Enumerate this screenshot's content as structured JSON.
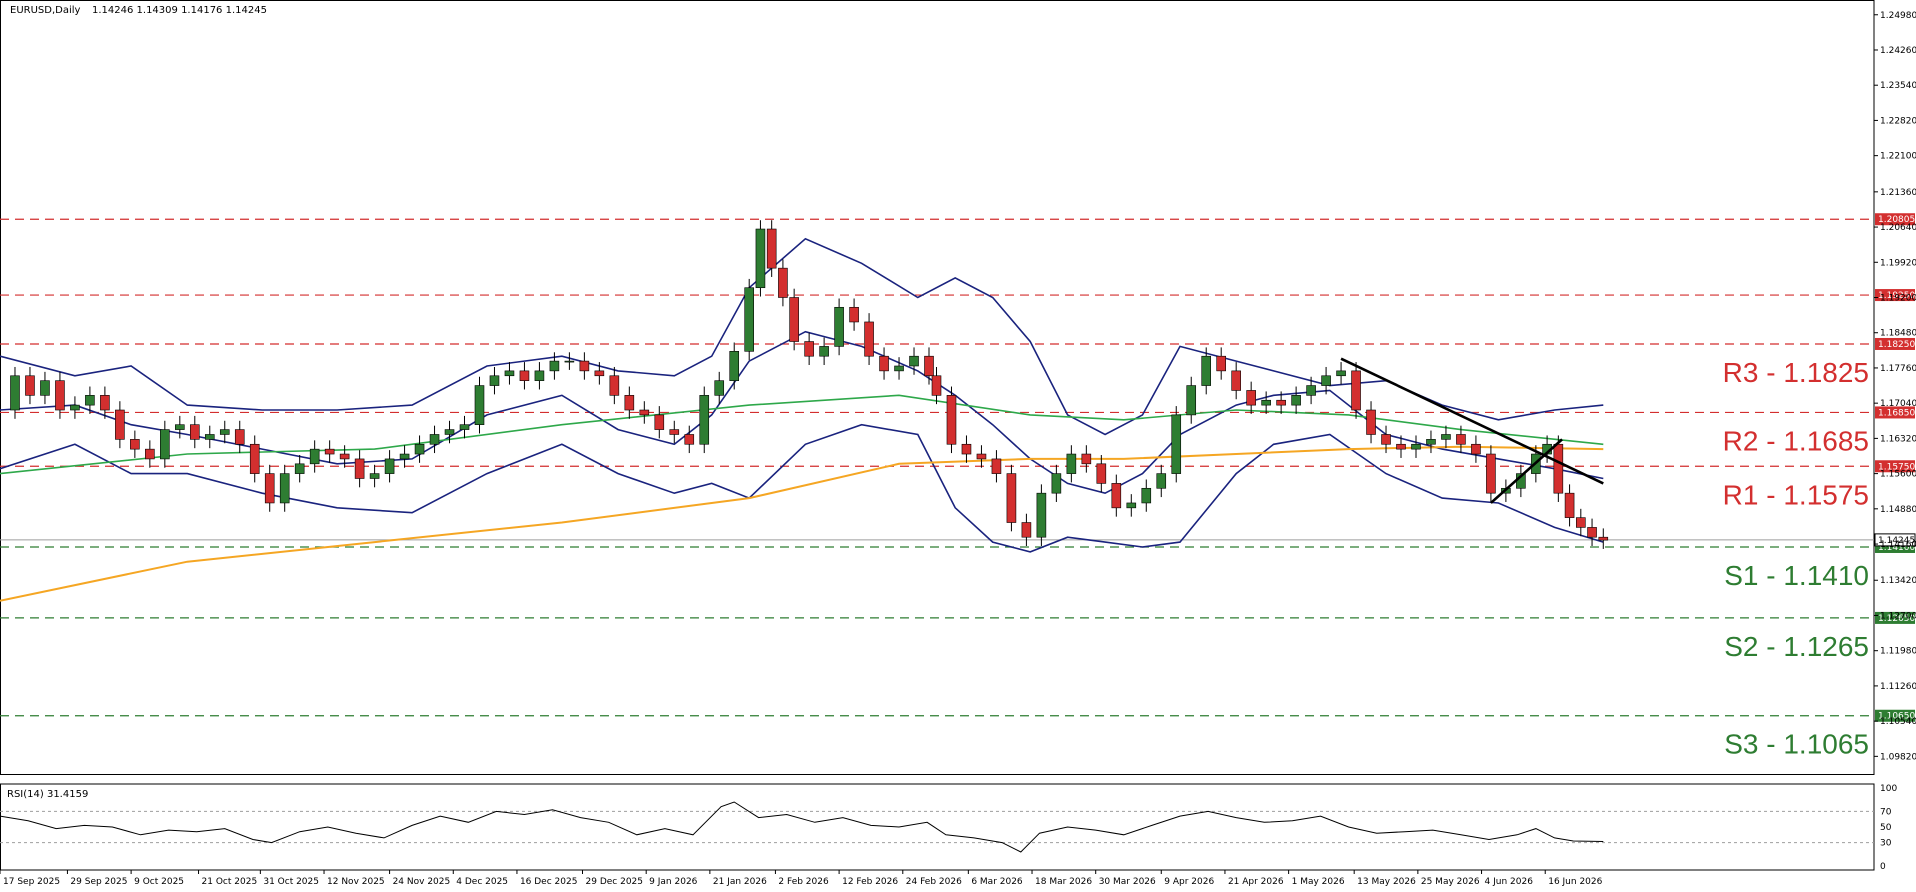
{
  "header": {
    "symbol_tf": "EURUSD,Daily",
    "ohlc": "1.14246 1.14309 1.14176 1.14245"
  },
  "rsi_header": "RSI(14) 31.4159",
  "colors": {
    "bull": "#2e7d32",
    "bear": "#d32f2f",
    "resistance": "#d32f2f",
    "support": "#2e7d32",
    "bollinger": "#1a237e",
    "ma_green": "#2ea84a",
    "ma_orange": "#f5a623",
    "trendline": "#000000",
    "rsi": "#000000"
  },
  "levels": [
    {
      "name": "r3",
      "price": 1.1825,
      "tag": "1.18250",
      "label": "R3 - 1.1825",
      "kind": "resistance"
    },
    {
      "name": "r2",
      "price": 1.1685,
      "tag": "1.16850",
      "label": "R2 - 1.1685",
      "kind": "resistance"
    },
    {
      "name": "r1",
      "price": 1.1575,
      "tag": "1.15750",
      "label": "R1 - 1.1575",
      "kind": "resistance"
    },
    {
      "name": "s1",
      "price": 1.141,
      "tag": "1.14100",
      "label": "S1 - 1.1410",
      "kind": "support"
    },
    {
      "name": "s2",
      "price": 1.1265,
      "tag": "1.12650",
      "label": "S2 - 1.1265",
      "kind": "support"
    },
    {
      "name": "s3",
      "price": 1.1065,
      "tag": "1.10650",
      "label": "S3 - 1.1065",
      "kind": "support"
    }
  ],
  "extra_resistance": [
    {
      "price": 1.208,
      "tag": "1.20805"
    },
    {
      "price": 1.1925,
      "tag": "1.19250"
    }
  ],
  "current_price": {
    "price": 1.14245,
    "tag": "1.14245"
  },
  "chart_data": {
    "type": "candlestick",
    "ylim": [
      1.095,
      1.252
    ],
    "xlim": [
      0,
      100
    ],
    "price_ticks": [
      "1.24980",
      "1.24260",
      "1.23540",
      "1.22820",
      "1.22100",
      "1.21360",
      "1.20640",
      "1.19920",
      "1.19200",
      "1.18480",
      "1.17760",
      "1.17040",
      "1.16320",
      "1.15600",
      "1.14880",
      "1.14160",
      "1.13420",
      "1.12700",
      "1.11980",
      "1.11260",
      "1.10540",
      "1.09820"
    ],
    "price_tick_values": [
      1.2498,
      1.2426,
      1.2354,
      1.2282,
      1.221,
      1.2136,
      1.2064,
      1.1992,
      1.192,
      1.1848,
      1.1776,
      1.1704,
      1.1632,
      1.156,
      1.1488,
      1.1416,
      1.1342,
      1.127,
      1.1198,
      1.1126,
      1.1054,
      1.0982
    ],
    "date_ticks": [
      {
        "x": 0,
        "label": "17 Sep 2025"
      },
      {
        "x": 3.6,
        "label": "29 Sep 2025"
      },
      {
        "x": 7.0,
        "label": "9 Oct 2025"
      },
      {
        "x": 10.6,
        "label": "21 Oct 2025"
      },
      {
        "x": 13.9,
        "label": "31 Oct 2025"
      },
      {
        "x": 17.3,
        "label": "12 Nov 2025"
      },
      {
        "x": 20.8,
        "label": "24 Nov 2025"
      },
      {
        "x": 24.2,
        "label": "4 Dec 2025"
      },
      {
        "x": 27.6,
        "label": "16 Dec 2025"
      },
      {
        "x": 31.1,
        "label": "29 Dec 2025"
      },
      {
        "x": 34.5,
        "label": "9 Jan 2026"
      },
      {
        "x": 37.9,
        "label": "21 Jan 2026"
      },
      {
        "x": 41.4,
        "label": "2 Feb 2026"
      },
      {
        "x": 44.8,
        "label": "12 Feb 2026"
      },
      {
        "x": 48.2,
        "label": "24 Feb 2026"
      },
      {
        "x": 51.7,
        "label": "6 Mar 2026"
      },
      {
        "x": 55.1,
        "label": "18 Mar 2026"
      },
      {
        "x": 58.5,
        "label": "30 Mar 2026"
      },
      {
        "x": 62.0,
        "label": "9 Apr 2026"
      },
      {
        "x": 65.4,
        "label": "21 Apr 2026"
      },
      {
        "x": 68.8,
        "label": "1 May 2026"
      },
      {
        "x": 72.3,
        "label": "13 May 2026"
      },
      {
        "x": 75.7,
        "label": "25 May 2026"
      },
      {
        "x": 79.1,
        "label": "4 Jun 2026"
      },
      {
        "x": 82.5,
        "label": "16 Jun 2026"
      }
    ],
    "close_path": [
      [
        0,
        1.169
      ],
      [
        0.8,
        1.176
      ],
      [
        1.6,
        1.172
      ],
      [
        2.4,
        1.175
      ],
      [
        3.2,
        1.169
      ],
      [
        4.0,
        1.17
      ],
      [
        4.8,
        1.172
      ],
      [
        5.6,
        1.169
      ],
      [
        6.4,
        1.163
      ],
      [
        7.2,
        1.161
      ],
      [
        8.0,
        1.159
      ],
      [
        8.8,
        1.165
      ],
      [
        9.6,
        1.166
      ],
      [
        10.4,
        1.163
      ],
      [
        11.2,
        1.164
      ],
      [
        12.0,
        1.165
      ],
      [
        12.8,
        1.162
      ],
      [
        13.6,
        1.156
      ],
      [
        14.4,
        1.15
      ],
      [
        15.2,
        1.156
      ],
      [
        16.0,
        1.158
      ],
      [
        16.8,
        1.161
      ],
      [
        17.6,
        1.16
      ],
      [
        18.4,
        1.159
      ],
      [
        19.2,
        1.155
      ],
      [
        20.0,
        1.156
      ],
      [
        20.8,
        1.159
      ],
      [
        21.6,
        1.16
      ],
      [
        22.4,
        1.162
      ],
      [
        23.2,
        1.164
      ],
      [
        24.0,
        1.165
      ],
      [
        24.8,
        1.166
      ],
      [
        25.6,
        1.174
      ],
      [
        26.4,
        1.176
      ],
      [
        27.2,
        1.177
      ],
      [
        28.0,
        1.175
      ],
      [
        28.8,
        1.177
      ],
      [
        29.6,
        1.179
      ],
      [
        30.4,
        1.179
      ],
      [
        31.2,
        1.177
      ],
      [
        32.0,
        1.176
      ],
      [
        32.8,
        1.172
      ],
      [
        33.6,
        1.169
      ],
      [
        34.4,
        1.168
      ],
      [
        35.2,
        1.165
      ],
      [
        36.0,
        1.164
      ],
      [
        36.8,
        1.162
      ],
      [
        37.6,
        1.172
      ],
      [
        38.4,
        1.175
      ],
      [
        39.2,
        1.181
      ],
      [
        40.0,
        1.194
      ],
      [
        40.6,
        1.206
      ],
      [
        41.2,
        1.198
      ],
      [
        41.8,
        1.192
      ],
      [
        42.4,
        1.183
      ],
      [
        43.2,
        1.18
      ],
      [
        44.0,
        1.182
      ],
      [
        44.8,
        1.19
      ],
      [
        45.6,
        1.187
      ],
      [
        46.4,
        1.18
      ],
      [
        47.2,
        1.177
      ],
      [
        48.0,
        1.178
      ],
      [
        48.8,
        1.18
      ],
      [
        49.6,
        1.176
      ],
      [
        50.0,
        1.172
      ],
      [
        50.8,
        1.162
      ],
      [
        51.6,
        1.16
      ],
      [
        52.4,
        1.159
      ],
      [
        53.2,
        1.156
      ],
      [
        54.0,
        1.146
      ],
      [
        54.8,
        1.143
      ],
      [
        55.6,
        1.152
      ],
      [
        56.4,
        1.156
      ],
      [
        57.2,
        1.16
      ],
      [
        58.0,
        1.158
      ],
      [
        58.8,
        1.154
      ],
      [
        59.6,
        1.149
      ],
      [
        60.4,
        1.15
      ],
      [
        61.2,
        1.153
      ],
      [
        62.0,
        1.156
      ],
      [
        62.8,
        1.168
      ],
      [
        63.6,
        1.174
      ],
      [
        64.4,
        1.18
      ],
      [
        65.2,
        1.177
      ],
      [
        66.0,
        1.173
      ],
      [
        66.8,
        1.17
      ],
      [
        67.6,
        1.171
      ],
      [
        68.4,
        1.17
      ],
      [
        69.2,
        1.172
      ],
      [
        70.0,
        1.174
      ],
      [
        70.8,
        1.176
      ],
      [
        71.6,
        1.177
      ],
      [
        72.4,
        1.169
      ],
      [
        73.2,
        1.164
      ],
      [
        74.0,
        1.162
      ],
      [
        74.8,
        1.161
      ],
      [
        75.6,
        1.162
      ],
      [
        76.4,
        1.163
      ],
      [
        77.2,
        1.164
      ],
      [
        78.0,
        1.162
      ],
      [
        78.8,
        1.16
      ],
      [
        79.6,
        1.152
      ],
      [
        80.4,
        1.153
      ],
      [
        81.2,
        1.156
      ],
      [
        82.0,
        1.16
      ],
      [
        82.6,
        1.162
      ],
      [
        83.2,
        1.152
      ],
      [
        83.8,
        1.147
      ],
      [
        84.4,
        1.145
      ],
      [
        85.0,
        1.143
      ],
      [
        85.6,
        1.1424
      ]
    ],
    "bollinger_upper": [
      [
        0,
        1.18
      ],
      [
        4,
        1.176
      ],
      [
        7,
        1.178
      ],
      [
        10,
        1.17
      ],
      [
        14,
        1.169
      ],
      [
        18,
        1.169
      ],
      [
        22,
        1.17
      ],
      [
        26,
        1.178
      ],
      [
        30,
        1.18
      ],
      [
        33,
        1.177
      ],
      [
        36,
        1.176
      ],
      [
        38,
        1.18
      ],
      [
        40,
        1.194
      ],
      [
        43,
        1.204
      ],
      [
        46,
        1.199
      ],
      [
        49,
        1.192
      ],
      [
        51,
        1.196
      ],
      [
        53,
        1.192
      ],
      [
        55,
        1.183
      ],
      [
        57,
        1.168
      ],
      [
        59,
        1.164
      ],
      [
        61,
        1.168
      ],
      [
        63,
        1.182
      ],
      [
        66,
        1.179
      ],
      [
        68,
        1.177
      ],
      [
        71,
        1.174
      ],
      [
        74,
        1.175
      ],
      [
        77,
        1.17
      ],
      [
        80,
        1.167
      ],
      [
        83,
        1.169
      ],
      [
        85.6,
        1.17
      ]
    ],
    "bollinger_mid": [
      [
        0,
        1.169
      ],
      [
        4,
        1.17
      ],
      [
        7,
        1.166
      ],
      [
        10,
        1.164
      ],
      [
        14,
        1.161
      ],
      [
        18,
        1.158
      ],
      [
        22,
        1.159
      ],
      [
        26,
        1.168
      ],
      [
        30,
        1.172
      ],
      [
        33,
        1.165
      ],
      [
        36,
        1.162
      ],
      [
        38,
        1.168
      ],
      [
        40,
        1.179
      ],
      [
        43,
        1.185
      ],
      [
        46,
        1.182
      ],
      [
        49,
        1.177
      ],
      [
        51,
        1.172
      ],
      [
        53,
        1.166
      ],
      [
        55,
        1.159
      ],
      [
        57,
        1.154
      ],
      [
        59,
        1.152
      ],
      [
        61,
        1.156
      ],
      [
        63,
        1.164
      ],
      [
        66,
        1.17
      ],
      [
        68,
        1.172
      ],
      [
        71,
        1.173
      ],
      [
        74,
        1.164
      ],
      [
        77,
        1.161
      ],
      [
        80,
        1.159
      ],
      [
        83,
        1.157
      ],
      [
        85.6,
        1.155
      ]
    ],
    "bollinger_lower": [
      [
        0,
        1.157
      ],
      [
        4,
        1.162
      ],
      [
        7,
        1.156
      ],
      [
        10,
        1.156
      ],
      [
        14,
        1.152
      ],
      [
        18,
        1.149
      ],
      [
        22,
        1.148
      ],
      [
        26,
        1.156
      ],
      [
        30,
        1.162
      ],
      [
        33,
        1.156
      ],
      [
        36,
        1.152
      ],
      [
        38,
        1.154
      ],
      [
        40,
        1.151
      ],
      [
        43,
        1.162
      ],
      [
        46,
        1.166
      ],
      [
        49,
        1.164
      ],
      [
        51,
        1.149
      ],
      [
        53,
        1.142
      ],
      [
        55,
        1.14
      ],
      [
        57,
        1.143
      ],
      [
        59,
        1.142
      ],
      [
        61,
        1.141
      ],
      [
        63,
        1.142
      ],
      [
        66,
        1.156
      ],
      [
        68,
        1.162
      ],
      [
        71,
        1.164
      ],
      [
        74,
        1.156
      ],
      [
        77,
        1.151
      ],
      [
        80,
        1.15
      ],
      [
        83,
        1.145
      ],
      [
        85.6,
        1.142
      ]
    ],
    "ma_green": [
      [
        0,
        1.156
      ],
      [
        10,
        1.16
      ],
      [
        20,
        1.161
      ],
      [
        30,
        1.166
      ],
      [
        40,
        1.17
      ],
      [
        48,
        1.172
      ],
      [
        55,
        1.168
      ],
      [
        60,
        1.167
      ],
      [
        66,
        1.169
      ],
      [
        72,
        1.168
      ],
      [
        78,
        1.165
      ],
      [
        85.6,
        1.162
      ]
    ],
    "ma_orange": [
      [
        0,
        1.13
      ],
      [
        10,
        1.138
      ],
      [
        20,
        1.142
      ],
      [
        30,
        1.146
      ],
      [
        40,
        1.151
      ],
      [
        48,
        1.158
      ],
      [
        55,
        1.159
      ],
      [
        60,
        1.159
      ],
      [
        66,
        1.16
      ],
      [
        72,
        1.161
      ],
      [
        78,
        1.1615
      ],
      [
        85.6,
        1.161
      ]
    ],
    "trendlines": [
      {
        "from": [
          71.6,
          1.1795
        ],
        "to": [
          85.6,
          1.154
        ]
      },
      {
        "from": [
          79.6,
          1.15
        ],
        "to": [
          83.4,
          1.163
        ]
      }
    ],
    "rsi": {
      "ylim": [
        0,
        100
      ],
      "ticks": [
        100,
        70,
        50,
        30,
        0
      ],
      "levels": [
        70,
        30
      ],
      "values": [
        [
          0,
          64
        ],
        [
          1.5,
          58
        ],
        [
          3,
          48
        ],
        [
          4.5,
          52
        ],
        [
          6,
          50
        ],
        [
          7.5,
          40
        ],
        [
          9,
          46
        ],
        [
          10.5,
          44
        ],
        [
          12,
          48
        ],
        [
          13.5,
          34
        ],
        [
          14.5,
          30
        ],
        [
          16,
          44
        ],
        [
          17.5,
          50
        ],
        [
          19,
          42
        ],
        [
          20.5,
          36
        ],
        [
          22,
          52
        ],
        [
          23.5,
          64
        ],
        [
          25,
          56
        ],
        [
          26.5,
          70
        ],
        [
          28,
          66
        ],
        [
          29.5,
          72
        ],
        [
          31,
          62
        ],
        [
          32.5,
          56
        ],
        [
          34,
          40
        ],
        [
          35.5,
          48
        ],
        [
          37,
          40
        ],
        [
          38.5,
          76
        ],
        [
          39.2,
          82
        ],
        [
          40.5,
          62
        ],
        [
          42,
          66
        ],
        [
          43.5,
          56
        ],
        [
          45,
          62
        ],
        [
          46.5,
          52
        ],
        [
          48,
          50
        ],
        [
          49.5,
          56
        ],
        [
          50.5,
          40
        ],
        [
          52,
          36
        ],
        [
          53.5,
          30
        ],
        [
          54.5,
          18
        ],
        [
          55.5,
          42
        ],
        [
          57,
          50
        ],
        [
          58.5,
          46
        ],
        [
          60,
          40
        ],
        [
          61.5,
          52
        ],
        [
          63,
          64
        ],
        [
          64.5,
          70
        ],
        [
          66,
          62
        ],
        [
          67.5,
          56
        ],
        [
          69,
          58
        ],
        [
          70.5,
          64
        ],
        [
          72,
          50
        ],
        [
          73.5,
          42
        ],
        [
          75,
          44
        ],
        [
          76.5,
          46
        ],
        [
          78,
          40
        ],
        [
          79.5,
          34
        ],
        [
          81,
          40
        ],
        [
          82,
          48
        ],
        [
          83,
          36
        ],
        [
          84,
          32
        ],
        [
          85.6,
          31.4
        ]
      ]
    }
  }
}
